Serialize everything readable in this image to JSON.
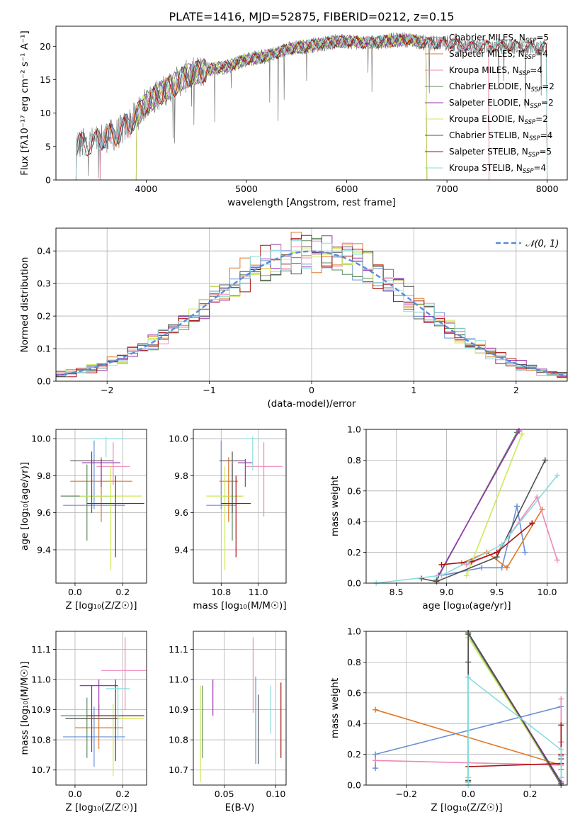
{
  "figure": {
    "title": "PLATE=1416, MJD=52875, FIBERID=0212, z=0.15"
  },
  "colors": {
    "series": [
      "#6a8fd8",
      "#e07828",
      "#ee88bb",
      "#5c8a5c",
      "#9a33b0",
      "#ccea55",
      "#505050",
      "#aa1111",
      "#88dddd"
    ],
    "grid": "#b0b0b0"
  },
  "chart_data": [
    {
      "id": "spectrum",
      "type": "line",
      "xlabel": "wavelength [Angstrom, rest frame]",
      "ylabel": "Flux [fλ10⁻¹⁷ erg cm⁻² s⁻¹ A⁻¹]",
      "xlim": [
        3100,
        8200
      ],
      "ylim": [
        0,
        23
      ],
      "xticks": [
        4000,
        5000,
        6000,
        7000,
        8000
      ],
      "yticks": [
        0,
        5,
        10,
        15,
        20
      ],
      "grid": false,
      "legend_position": "top-right",
      "continuum": {
        "x": [
          3300,
          3450,
          3600,
          3700,
          3800,
          3900,
          4000,
          4100,
          4200,
          4400,
          4600,
          4800,
          5000,
          5200,
          5400,
          5600,
          5800,
          6000,
          6200,
          6400,
          6600,
          6800,
          7000,
          7200,
          7400,
          7600,
          7800,
          8000
        ],
        "y": [
          5.3,
          5.5,
          6.5,
          6.8,
          8.0,
          9.5,
          11.5,
          12.5,
          13.5,
          15.5,
          16.5,
          17.0,
          18.0,
          18.5,
          19.5,
          20.0,
          20.5,
          20.8,
          20.5,
          20.8,
          21.0,
          20.5,
          20.5,
          20.0,
          20.0,
          20.0,
          20.0,
          19.8
        ]
      },
      "series": [
        {
          "name": "Chabrier MILES, N_SSP=5",
          "color": "#6a8fd8",
          "x_range": [
            3540,
            7420
          ]
        },
        {
          "name": "Salpeter MILES, N_SSP=4",
          "color": "#e07828",
          "x_range": [
            3540,
            7420
          ]
        },
        {
          "name": "Kroupa MILES, N_SSP=4",
          "color": "#ee88bb",
          "x_range": [
            3540,
            7420
          ]
        },
        {
          "name": "Chabrier ELODIE, N_SSP=2",
          "color": "#5c8a5c",
          "x_range": [
            3900,
            6800
          ]
        },
        {
          "name": "Salpeter ELODIE, N_SSP=2",
          "color": "#9a33b0",
          "x_range": [
            3900,
            6800
          ]
        },
        {
          "name": "Kroupa ELODIE, N_SSP=2",
          "color": "#ccea55",
          "x_range": [
            3900,
            6800
          ]
        },
        {
          "name": "Chabrier STELIB, N_SSP=4",
          "color": "#505050",
          "x_range": [
            3300,
            8000
          ]
        },
        {
          "name": "Salpeter STELIB, N_SSP=5",
          "color": "#aa1111",
          "x_range": [
            3300,
            8000
          ]
        },
        {
          "name": "Kroupa STELIB, N_SSP=4",
          "color": "#88dddd",
          "x_range": [
            3300,
            8000
          ]
        }
      ],
      "legend": [
        {
          "label": "Chabrier MILES, N",
          "sub": "SSP",
          "post": "=5"
        },
        {
          "label": "Salpeter MILES, N",
          "sub": "SSP",
          "post": "=4"
        },
        {
          "label": "Kroupa MILES, N",
          "sub": "SSP",
          "post": "=4"
        },
        {
          "label": "Chabrier ELODIE, N",
          "sub": "SSP",
          "post": "=2"
        },
        {
          "label": "Salpeter ELODIE, N",
          "sub": "SSP",
          "post": "=2"
        },
        {
          "label": "Kroupa ELODIE, N",
          "sub": "SSP",
          "post": "=2"
        },
        {
          "label": "Chabrier STELIB, N",
          "sub": "SSP",
          "post": "=4"
        },
        {
          "label": "Salpeter STELIB, N",
          "sub": "SSP",
          "post": "=5"
        },
        {
          "label": "Kroupa STELIB, N",
          "sub": "SSP",
          "post": "=4"
        }
      ]
    },
    {
      "id": "residuals",
      "type": "line",
      "xlabel": "(data-model)/error",
      "ylabel": "Normed distribution",
      "xlim": [
        -2.5,
        2.5
      ],
      "ylim": [
        0,
        0.47
      ],
      "xticks": [
        -2,
        -1,
        0,
        1,
        2
      ],
      "yticks": [
        0.0,
        0.1,
        0.2,
        0.3,
        0.4
      ],
      "grid": true,
      "legend_position": "top-right",
      "legend": "𝒩(0, 1)",
      "reference_curve": {
        "name": "𝒩(0, 1)",
        "mean": 0,
        "std": 1,
        "color": "#5b8bd8"
      },
      "bin_width": 0.1
    },
    {
      "id": "age-vs-Z",
      "type": "scatter",
      "xlabel": "Z [log₁₀(Z/Z☉)]",
      "ylabel": "age  [log₁₀(age/yr)]",
      "xlim": [
        -0.08,
        0.3
      ],
      "ylim": [
        9.22,
        10.05
      ],
      "xticks": [
        0.0,
        0.2
      ],
      "yticks": [
        9.4,
        9.6,
        9.8,
        10.0
      ],
      "grid": true,
      "points": [
        {
          "x": 0.08,
          "y": 9.64,
          "xerr": 0.13,
          "yerr": [
            0.02,
            0.35
          ],
          "color": "#6a8fd8"
        },
        {
          "x": 0.11,
          "y": 9.77,
          "xerr": 0.13,
          "yerr": [
            0.22,
            0.13
          ],
          "color": "#e07828"
        },
        {
          "x": 0.16,
          "y": 9.85,
          "xerr": 0.07,
          "yerr": [
            0.1,
            0.13
          ],
          "color": "#ee88bb"
        },
        {
          "x": 0.05,
          "y": 9.69,
          "xerr": 0.11,
          "yerr": [
            0.24,
            0.17
          ],
          "color": "#5c8a5c"
        },
        {
          "x": 0.11,
          "y": 9.87,
          "xerr": 0.08,
          "yerr": [
            0.13,
            0.02
          ],
          "color": "#9a33b0"
        },
        {
          "x": 0.15,
          "y": 9.69,
          "xerr": 0.13,
          "yerr": [
            0.4,
            0.16
          ],
          "color": "#ccea55"
        },
        {
          "x": 0.07,
          "y": 9.88,
          "xerr": 0.09,
          "yerr": [
            0.28,
            0.05
          ],
          "color": "#505050"
        },
        {
          "x": 0.17,
          "y": 9.65,
          "xerr": 0.12,
          "yerr": [
            0.29,
            0.15
          ],
          "color": "#aa1111"
        },
        {
          "x": 0.13,
          "y": 10.0,
          "xerr": 0.08,
          "yerr": [
            0.1,
            0.01
          ],
          "color": "#88dddd"
        }
      ]
    },
    {
      "id": "age-vs-mass",
      "type": "scatter",
      "xlabel": "mass [log₁₀(M/M☉)]",
      "ylabel": "",
      "xlim": [
        10.65,
        11.15
      ],
      "ylim": [
        9.22,
        10.05
      ],
      "xticks": [
        10.8,
        11.0
      ],
      "yticks": [
        9.4,
        9.6,
        9.8,
        10.0
      ],
      "grid": true,
      "points": [
        {
          "x": 10.8,
          "y": 9.64,
          "xerr": 0.08,
          "yerr": [
            0.02,
            0.35
          ],
          "color": "#6a8fd8"
        },
        {
          "x": 10.84,
          "y": 9.77,
          "xerr": 0.05,
          "yerr": [
            0.22,
            0.13
          ],
          "color": "#e07828"
        },
        {
          "x": 11.03,
          "y": 9.85,
          "xerr": 0.1,
          "yerr": [
            0.27,
            0.13
          ],
          "color": "#ee88bb"
        },
        {
          "x": 10.86,
          "y": 9.69,
          "xerr": 0.05,
          "yerr": [
            0.24,
            0.17
          ],
          "color": "#5c8a5c"
        },
        {
          "x": 10.93,
          "y": 9.87,
          "xerr": 0.04,
          "yerr": [
            0.13,
            0.02
          ],
          "color": "#9a33b0"
        },
        {
          "x": 10.82,
          "y": 9.69,
          "xerr": 0.1,
          "yerr": [
            0.4,
            0.16
          ],
          "color": "#ccea55"
        },
        {
          "x": 10.86,
          "y": 9.88,
          "xerr": 0.07,
          "yerr": [
            0.28,
            0.05
          ],
          "color": "#505050"
        },
        {
          "x": 10.88,
          "y": 9.65,
          "xerr": 0.08,
          "yerr": [
            0.29,
            0.15
          ],
          "color": "#aa1111"
        },
        {
          "x": 10.97,
          "y": 10.0,
          "xerr": 0.05,
          "yerr": [
            0.17,
            0.01
          ],
          "color": "#88dddd"
        }
      ]
    },
    {
      "id": "weight-vs-age",
      "type": "line",
      "xlabel": "age  [log₁₀(age/yr)]",
      "ylabel": "mass weight",
      "xlim": [
        8.2,
        10.2
      ],
      "ylim": [
        0,
        1
      ],
      "xticks": [
        8.5,
        9.0,
        9.5,
        10.0
      ],
      "yticks": [
        0.0,
        0.2,
        0.4,
        0.6,
        0.8,
        1.0
      ],
      "grid": true,
      "series": [
        {
          "color": "#6a8fd8",
          "x": [
            8.95,
            9.35,
            9.55,
            9.7,
            9.78
          ],
          "y": [
            0.05,
            0.1,
            0.1,
            0.5,
            0.2
          ]
        },
        {
          "color": "#e07828",
          "x": [
            9.15,
            9.4,
            9.6,
            9.95
          ],
          "y": [
            0.13,
            0.2,
            0.1,
            0.48
          ]
        },
        {
          "color": "#ee88bb",
          "x": [
            9.2,
            9.5,
            9.9,
            10.1
          ],
          "y": [
            0.12,
            0.2,
            0.56,
            0.15
          ]
        },
        {
          "color": "#5c8a5c",
          "x": [
            8.9,
            9.7
          ],
          "y": [
            0.02,
            0.98
          ]
        },
        {
          "color": "#9a33b0",
          "x": [
            8.92,
            9.72
          ],
          "y": [
            0.05,
            0.99
          ]
        },
        {
          "color": "#ccea55",
          "x": [
            9.2,
            9.75
          ],
          "y": [
            0.05,
            0.97
          ]
        },
        {
          "color": "#505050",
          "x": [
            8.75,
            8.9,
            9.5,
            9.98
          ],
          "y": [
            0.03,
            0.01,
            0.17,
            0.8
          ]
        },
        {
          "color": "#aa1111",
          "x": [
            8.95,
            9.25,
            9.5,
            9.85
          ],
          "y": [
            0.12,
            0.14,
            0.2,
            0.39
          ]
        },
        {
          "color": "#88dddd",
          "x": [
            8.3,
            8.95,
            9.55,
            10.1
          ],
          "y": [
            0.0,
            0.05,
            0.25,
            0.7
          ]
        }
      ]
    },
    {
      "id": "mass-vs-Z",
      "type": "scatter",
      "xlabel": "Z [log₁₀(Z/Z☉)]",
      "ylabel": "mass [log₁₀(M/M☉)]",
      "xlim": [
        -0.08,
        0.3
      ],
      "ylim": [
        10.65,
        11.16
      ],
      "xticks": [
        0.0,
        0.2
      ],
      "yticks": [
        10.7,
        10.8,
        10.9,
        11.0,
        11.1
      ],
      "grid": true,
      "points": [
        {
          "x": 0.08,
          "y": 10.81,
          "xerr": 0.13,
          "yerr": [
            0.1,
            0.1
          ],
          "color": "#6a8fd8"
        },
        {
          "x": 0.1,
          "y": 10.84,
          "xerr": 0.1,
          "yerr": [
            0.07,
            0.08
          ],
          "color": "#e07828"
        },
        {
          "x": 0.21,
          "y": 11.03,
          "xerr": 0.1,
          "yerr": [
            0.13,
            0.11
          ],
          "color": "#ee88bb"
        },
        {
          "x": 0.05,
          "y": 10.88,
          "xerr": 0.11,
          "yerr": [
            0.14,
            0.06
          ],
          "color": "#5c8a5c"
        },
        {
          "x": 0.1,
          "y": 10.98,
          "xerr": 0.08,
          "yerr": [
            0.1,
            0.02
          ],
          "color": "#9a33b0"
        },
        {
          "x": 0.16,
          "y": 10.87,
          "xerr": 0.13,
          "yerr": [
            0.19,
            0.05
          ],
          "color": "#ccea55"
        },
        {
          "x": 0.07,
          "y": 10.87,
          "xerr": 0.11,
          "yerr": [
            0.11,
            0.11
          ],
          "color": "#505050"
        },
        {
          "x": 0.17,
          "y": 10.88,
          "xerr": 0.12,
          "yerr": [
            0.15,
            0.12
          ],
          "color": "#aa1111"
        },
        {
          "x": 0.18,
          "y": 10.97,
          "xerr": 0.05,
          "yerr": [
            0.17,
            0.01
          ],
          "color": "#88dddd"
        }
      ]
    },
    {
      "id": "mass-vs-ebv",
      "type": "scatter",
      "xlabel": "E(B-V)",
      "ylabel": "",
      "xlim": [
        0.02,
        0.11
      ],
      "ylim": [
        10.65,
        11.16
      ],
      "xticks": [
        0.05,
        0.1
      ],
      "yticks": [
        10.7,
        10.8,
        10.9,
        11.0,
        11.1
      ],
      "grid": true,
      "points": [
        {
          "x": 0.0805,
          "y": 10.84,
          "yerr": [
            0.12,
            0.17
          ],
          "color": "#6a8fd8"
        },
        {
          "x": 0.078,
          "y": 10.98,
          "yerr": [
            0.09,
            0.16
          ],
          "color": "#ee88bb"
        },
        {
          "x": 0.029,
          "y": 10.88,
          "yerr": [
            0.14,
            0.1
          ],
          "color": "#5c8a5c"
        },
        {
          "x": 0.039,
          "y": 10.93,
          "yerr": [
            0.05,
            0.07
          ],
          "color": "#9a33b0"
        },
        {
          "x": 0.027,
          "y": 10.86,
          "yerr": [
            0.2,
            0.12
          ],
          "color": "#ccea55"
        },
        {
          "x": 0.083,
          "y": 10.84,
          "yerr": [
            0.12,
            0.11
          ],
          "color": "#505050"
        },
        {
          "x": 0.105,
          "y": 10.86,
          "yerr": [
            0.12,
            0.13
          ],
          "color": "#aa1111"
        },
        {
          "x": 0.095,
          "y": 10.88,
          "yerr": [
            0.06,
            0.1
          ],
          "color": "#88dddd"
        }
      ]
    },
    {
      "id": "weight-vs-Z",
      "type": "line",
      "xlabel": "Z [log₁₀(Z/Z☉)]",
      "ylabel": "mass weight",
      "xlim": [
        -0.33,
        0.32
      ],
      "ylim": [
        0,
        1
      ],
      "xticks": [
        -0.2,
        0.0,
        0.2
      ],
      "yticks": [
        0.0,
        0.2,
        0.4,
        0.6,
        0.8,
        1.0
      ],
      "grid": true,
      "series": [
        {
          "color": "#6a8fd8",
          "x": [
            -0.3,
            -0.3,
            0.3,
            0.3
          ],
          "y": [
            0.11,
            0.2,
            0.51,
            0.19
          ]
        },
        {
          "color": "#e07828",
          "x": [
            -0.3,
            0.3,
            0.3
          ],
          "y": [
            0.49,
            0.13,
            0.1
          ]
        },
        {
          "color": "#ee88bb",
          "x": [
            -0.3,
            0.3,
            0.3,
            0.3
          ],
          "y": [
            0.16,
            0.13,
            0.28,
            0.56
          ]
        },
        {
          "color": "#5c8a5c",
          "x": [
            0.0,
            0.0,
            0.3
          ],
          "y": [
            0.02,
            0.98,
            0.0
          ]
        },
        {
          "color": "#9a33b0",
          "x": [
            0.0,
            0.0,
            0.3
          ],
          "y": [
            0.05,
            0.99,
            0.02
          ]
        },
        {
          "color": "#ccea55",
          "x": [
            0.0,
            0.0,
            0.3
          ],
          "y": [
            0.05,
            0.96,
            0.01
          ]
        },
        {
          "color": "#505050",
          "x": [
            0.0,
            0.0,
            0.0,
            0.3,
            0.3
          ],
          "y": [
            0.03,
            0.8,
            0.99,
            0.01,
            0.17
          ]
        },
        {
          "color": "#aa1111",
          "x": [
            0.0,
            0.3,
            0.3,
            0.3,
            0.3
          ],
          "y": [
            0.12,
            0.14,
            0.2,
            0.39,
            0.05
          ]
        },
        {
          "color": "#88dddd",
          "x": [
            0.0,
            0.0,
            0.3,
            0.3
          ],
          "y": [
            0.0,
            0.7,
            0.23,
            0.05
          ]
        }
      ]
    }
  ]
}
